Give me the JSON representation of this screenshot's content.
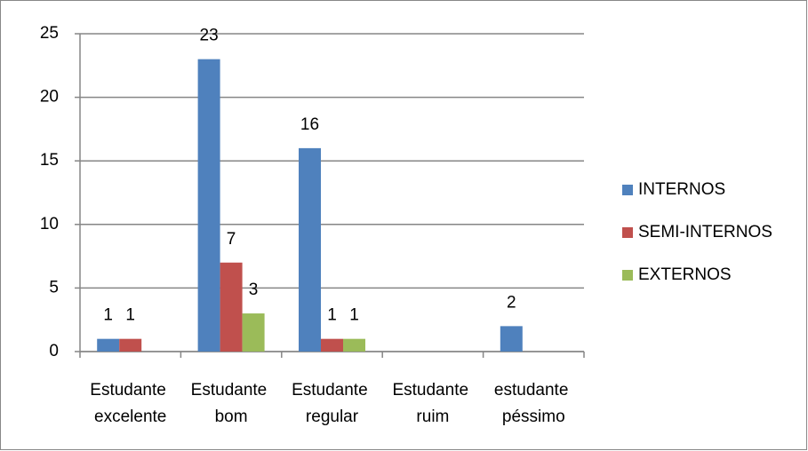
{
  "chart_data": {
    "type": "bar",
    "categories": [
      "Estudante excelente",
      "Estudante bom",
      "Estudante regular",
      "Estudante ruim",
      "estudante péssimo"
    ],
    "series": [
      {
        "name": "INTERNOS",
        "color": "#4f81bd",
        "values": [
          1,
          23,
          16,
          null,
          2
        ]
      },
      {
        "name": "SEMI-INTERNOS",
        "color": "#c0504d",
        "values": [
          1,
          7,
          1,
          null,
          null
        ]
      },
      {
        "name": "EXTERNOS",
        "color": "#9bbb59",
        "values": [
          null,
          3,
          1,
          null,
          null
        ]
      }
    ],
    "ylim": [
      0,
      25
    ],
    "yticks": [
      0,
      5,
      10,
      15,
      20,
      25
    ],
    "grid": true,
    "legend": "right"
  }
}
